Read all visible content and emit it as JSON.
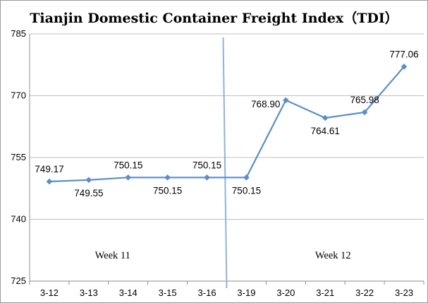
{
  "chart_data": {
    "type": "line",
    "title": "Tianjin Domestic Container Freight Index（TDI）",
    "categories": [
      "3-12",
      "3-13",
      "3-14",
      "3-15",
      "3-16",
      "3-19",
      "3-20",
      "3-21",
      "3-22",
      "3-23"
    ],
    "values": [
      749.17,
      749.55,
      750.15,
      750.15,
      750.15,
      750.15,
      768.9,
      764.61,
      765.98,
      777.06
    ],
    "value_labels": [
      "749.17",
      "749.55",
      "750.15",
      "750.15",
      "750.15",
      "750.15",
      "768.90",
      "764.61",
      "765.98",
      "777.06"
    ],
    "ylim": [
      725,
      785
    ],
    "yticks": [
      "725",
      "740",
      "755",
      "770",
      "785"
    ],
    "xlabel": "",
    "ylabel": "",
    "grid": true,
    "line_color": "#5b8ec9",
    "divider_color": "#8fb3da",
    "annotations": [
      "Week 11",
      "Week 12"
    ]
  }
}
